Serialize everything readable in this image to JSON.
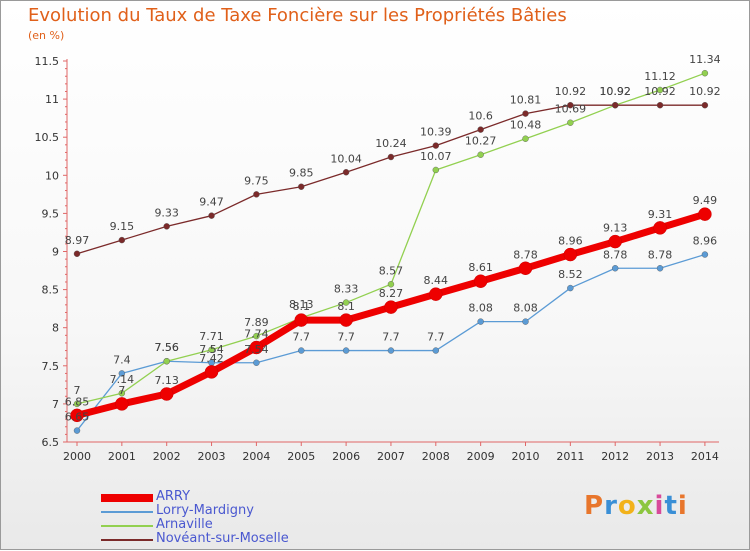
{
  "header": {
    "title": "Evolution du Taux de Taxe Foncière sur les Propriétés Bâties",
    "unit": "(en %)"
  },
  "logo": {
    "text": "Proxiti",
    "colors": [
      "#e8762c",
      "#3a8fd6",
      "#f2b21a",
      "#8cc63f",
      "#d84a9a",
      "#3a8fd6",
      "#e8762c"
    ]
  },
  "chart_data": {
    "type": "line",
    "title": "Evolution du Taux de Taxe Foncière sur les Propriétés Bâties",
    "ylabel": "(en %)",
    "xlabel": "",
    "categories": [
      "2000",
      "2001",
      "2002",
      "2003",
      "2004",
      "2005",
      "2006",
      "2007",
      "2008",
      "2009",
      "2010",
      "2011",
      "2012",
      "2013",
      "2014"
    ],
    "ylim": [
      6.5,
      11.5
    ],
    "yticks": [
      "6.5",
      "7",
      "7.5",
      "8",
      "8.5",
      "9",
      "9.5",
      "10",
      "10.5",
      "11",
      "11.5"
    ],
    "grid": false,
    "legend_position": "bottom-left",
    "series": [
      {
        "name": "ARRY",
        "color": "#ee0000",
        "emphasis": "thick",
        "values": [
          6.85,
          7,
          7.13,
          7.42,
          7.74,
          8.1,
          8.1,
          8.27,
          8.44,
          8.61,
          8.78,
          8.96,
          9.13,
          9.31,
          9.49
        ],
        "labels": [
          "6.85",
          "7",
          "7.13",
          "7.42",
          "7.74",
          "8.1",
          "8.1",
          "8.27",
          "8.44",
          "8.61",
          "8.78",
          "8.96",
          "9.13",
          "9.31",
          "9.49"
        ]
      },
      {
        "name": "Lorry-Mardigny",
        "color": "#5b9bd5",
        "emphasis": "normal",
        "values": [
          6.65,
          7.4,
          7.56,
          7.54,
          7.54,
          7.7,
          7.7,
          7.7,
          7.7,
          8.08,
          8.08,
          8.52,
          8.78,
          8.78,
          8.96
        ],
        "labels": [
          "6.65",
          "7.4",
          "7.56",
          "7.54",
          "7.54",
          "7.7",
          "7.7",
          "7.7",
          "7.7",
          "8.08",
          "8.08",
          "8.52",
          "8.78",
          "8.78",
          "8.96"
        ]
      },
      {
        "name": "Arnaville",
        "color": "#92d050",
        "emphasis": "normal",
        "values": [
          7,
          7.14,
          7.56,
          7.71,
          7.89,
          8.13,
          8.33,
          8.57,
          10.07,
          10.27,
          10.48,
          10.69,
          10.92,
          11.12,
          11.34
        ],
        "labels": [
          "7",
          "7.14",
          "7.56",
          "7.71",
          "7.89",
          "8.13",
          "8.33",
          "8.57",
          "10.07",
          "10.27",
          "10.48",
          "10.69",
          "10.92",
          "11.12",
          "11.34"
        ]
      },
      {
        "name": "Novéant-sur-Moselle",
        "color": "#7b2a2a",
        "emphasis": "normal",
        "values": [
          8.97,
          9.15,
          9.33,
          9.47,
          9.75,
          9.85,
          10.04,
          10.24,
          10.39,
          10.6,
          10.81,
          10.92,
          10.92,
          10.92,
          10.92
        ],
        "labels": [
          "8.97",
          "9.15",
          "9.33",
          "9.47",
          "9.75",
          "9.85",
          "10.04",
          "10.24",
          "10.39",
          "10.6",
          "10.81",
          "10.92",
          "10.92",
          "10.92",
          "10.92"
        ]
      }
    ]
  }
}
